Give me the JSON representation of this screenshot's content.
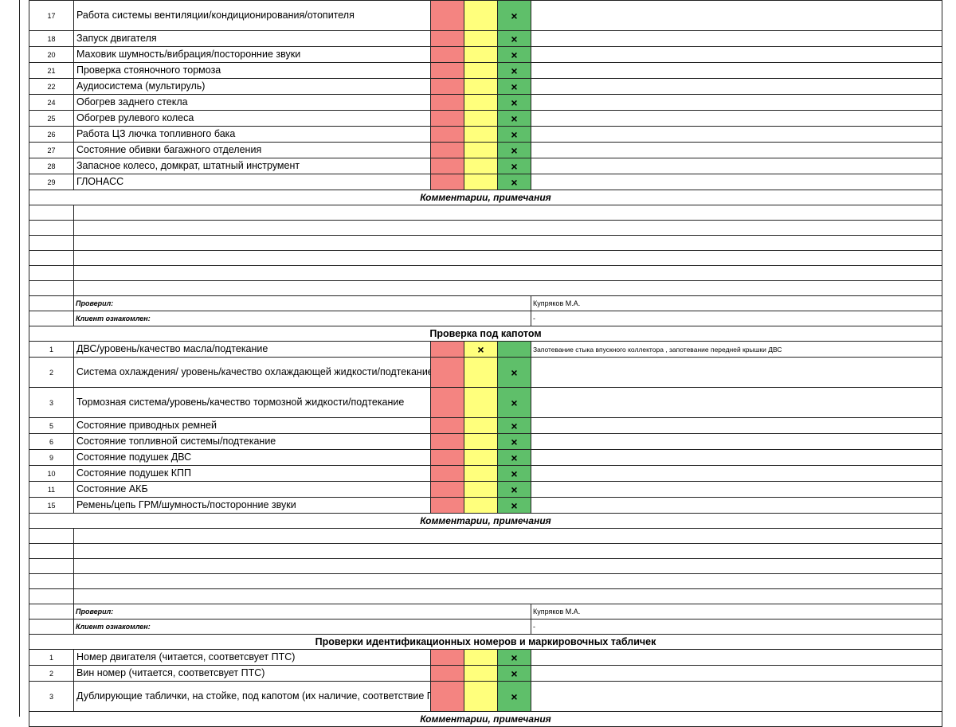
{
  "section_cabin": {
    "rows": [
      {
        "num": "17",
        "item": "Работа системы вентиляции/кондиционирования/отопителя",
        "mark": "green"
      },
      {
        "num": "18",
        "item": "Запуск двигателя",
        "mark": "green"
      },
      {
        "num": "20",
        "item": "Маховик шумность/вибрация/посторонние звуки",
        "mark": "green"
      },
      {
        "num": "21",
        "item": "Проверка стояночного тормоза",
        "mark": "green"
      },
      {
        "num": "22",
        "item": "Аудиосистема (мультируль)",
        "mark": "green"
      },
      {
        "num": "24",
        "item": "Обогрев заднего стекла",
        "mark": "green"
      },
      {
        "num": "25",
        "item": "Обогрев рулевого колеса",
        "mark": "green"
      },
      {
        "num": "26",
        "item": "Работа ЦЗ лючка топливного бака",
        "mark": "green"
      },
      {
        "num": "27",
        "item": "Состояние обивки багажного отделения",
        "mark": "green"
      },
      {
        "num": "28",
        "item": "Запасное колесо, домкрат, штатный инструмент",
        "mark": "green"
      },
      {
        "num": "29",
        "item": "ГЛОНАСС",
        "mark": "green"
      }
    ],
    "comments_title": "Комментарии, примечания",
    "checked_label": "Проверил:",
    "checked_value": "Купряков М.А.",
    "client_label": "Клиент ознакомлен:",
    "client_value": "-"
  },
  "section_hood": {
    "title": "Проверка под капотом",
    "rows": [
      {
        "num": "1",
        "item": "ДВС/уровень/качество масла/подтекание",
        "mark": "yellow",
        "note": "Запотевание стыка впускного коллектора , запотевание передней крышки ДВС"
      },
      {
        "num": "2",
        "item": "Система охлаждения/ уровень/качество охлаждающей жидкости/подтекание",
        "mark": "green",
        "note": ""
      },
      {
        "num": "3",
        "item": "Тормозная система/уровень/качество тормозной жидкости/подтекание",
        "mark": "green",
        "note": ""
      },
      {
        "num": "5",
        "item": "Состояние приводных ремней",
        "mark": "green",
        "note": ""
      },
      {
        "num": "6",
        "item": "Состояние топливной системы/подтекание",
        "mark": "green",
        "note": ""
      },
      {
        "num": "9",
        "item": "Состояние подушек ДВС",
        "mark": "green",
        "note": ""
      },
      {
        "num": "10",
        "item": "Состояние подушек КПП",
        "mark": "green",
        "note": ""
      },
      {
        "num": "11",
        "item": "Состояние АКБ",
        "mark": "green",
        "note": ""
      },
      {
        "num": "15",
        "item": "Ремень/цепь ГРМ/шумность/посторонние звуки",
        "mark": "green",
        "note": ""
      }
    ],
    "comments_title": "Комментарии, примечания",
    "checked_label": "Проверил:",
    "checked_value": "Купряков М.А.",
    "client_label": "Клиент ознакомлен:",
    "client_value": "-"
  },
  "section_ids": {
    "title": "Проверки идентификационных номеров и маркировочных табличек",
    "rows": [
      {
        "num": "1",
        "item": "Номер двигателя (читается, соответсвует ПТС)",
        "mark": "green"
      },
      {
        "num": "2",
        "item": "Вин номер (читается, соответсвует ПТС)",
        "mark": "green"
      },
      {
        "num": "3",
        "item": "Дублирующие таблички, на стойке, под капотом (их наличие, соответствие ПТС)",
        "mark": "green"
      }
    ],
    "comments_title": "Комментарии, примечания"
  },
  "mark_symbol": "×",
  "colors": {
    "red": "#f48481",
    "yellow": "#ffff7c",
    "green": "#5fbf6a"
  }
}
